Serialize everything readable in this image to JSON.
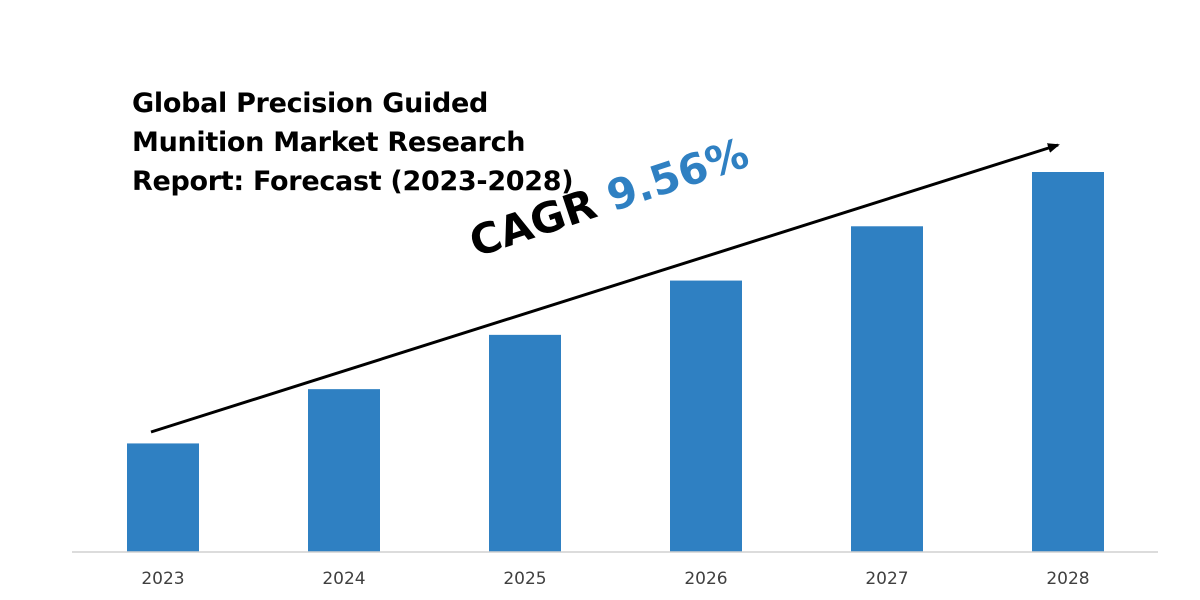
{
  "chart_data": {
    "type": "bar",
    "title_lines": [
      "Global Precision Guided",
      "Munition Market Research",
      "Report: Forecast (2023-2028)"
    ],
    "categories": [
      "2023",
      "2024",
      "2025",
      "2026",
      "2027",
      "2028"
    ],
    "values": [
      1.0,
      1.5,
      2.0,
      2.5,
      3.0,
      3.5
    ],
    "value_note_hidden": "",
    "annotation": {
      "label": "CAGR",
      "value": "9.56%"
    },
    "bar_color": "#2f80c2",
    "grid": false,
    "legend": "none",
    "trend_arrow": true
  }
}
